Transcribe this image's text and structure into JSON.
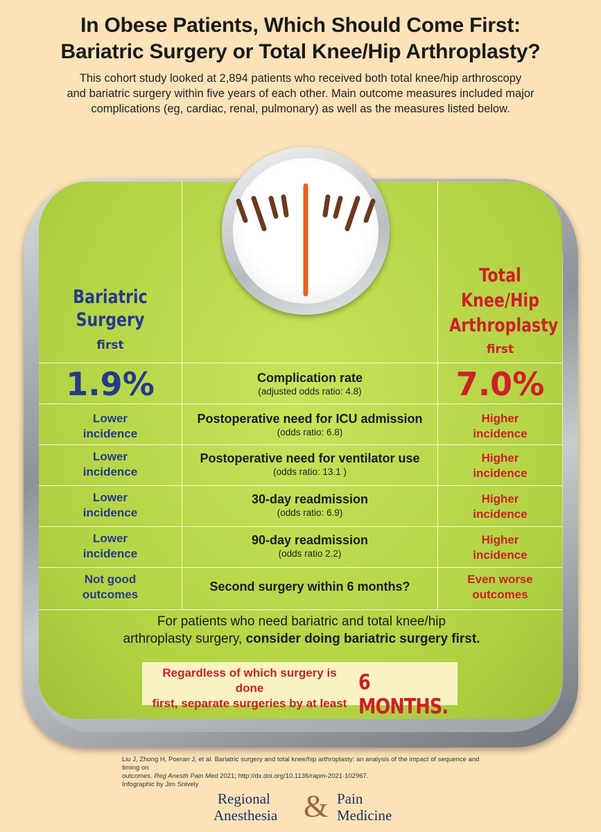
{
  "header": {
    "title_line1": "In Obese Patients, Which Should Come First:",
    "title_line2": "Bariatric Surgery or Total Knee/Hip Arthroplasty?",
    "intro_line1": "This cohort study looked at 2,894 patients who received both total knee/hip arthroscopy",
    "intro_line2": "and bariatric surgery within five years of each other. Main outcome measures included major",
    "intro_line3": "complications (eg, cardiac, renal, pulmonary) as well as the measures listed below."
  },
  "columns": {
    "left_line1": "Bariatric",
    "left_line2": "Surgery",
    "left_sub": "first",
    "right_line1": "Total",
    "right_line2": "Knee/Hip",
    "right_line3": "Arthroplasty",
    "right_sub": "first"
  },
  "complication": {
    "left_value": "1.9%",
    "label": "Complication rate",
    "sub": "(adjusted odds ratio: 4.8)",
    "right_value": "7.0%"
  },
  "rows": [
    {
      "left1": "Lower",
      "left2": "incidence",
      "label": "Postoperative need for ICU admission",
      "sub": "(odds ratio: 6.8)",
      "right1": "Higher",
      "right2": "incidence"
    },
    {
      "left1": "Lower",
      "left2": "incidence",
      "label": "Postoperative need for ventilator use",
      "sub": "(odds ratio: 13.1 )",
      "right1": "Higher",
      "right2": "incidence"
    },
    {
      "left1": "Lower",
      "left2": "incidence",
      "label": "30-day readmission",
      "sub": "(odds ratio: 6.9)",
      "right1": "Higher",
      "right2": "incidence"
    },
    {
      "left1": "Lower",
      "left2": "incidence",
      "label": "90-day readmission",
      "sub": "(odds ratio 2.2)",
      "right1": "Higher",
      "right2": "incidence"
    },
    {
      "left1": "Not good",
      "left2": "outcomes",
      "label": "Second surgery within 6 months?",
      "sub": "",
      "right1": "Even worse",
      "right2": "outcomes"
    }
  ],
  "conclusion": {
    "line1": "For patients who need bariatric and total knee/hip",
    "line2_plain": "arthroplasty surgery, ",
    "line2_bold": "consider doing bariatric surgery first."
  },
  "note": {
    "line1": "Regardless of which surgery is done",
    "line2": "first, separate surgeries by at least",
    "emphasis": "6 MONTHS."
  },
  "citation": {
    "line1": "Liu J, Zhong H, Poeran J, et al. Bariatric surgery and total knee/hip arthroplasty: an analysis of the impact of sequence and timing on",
    "line2_plain": "outcomes. ",
    "line2_journal": "Reg Anesth Pain Med",
    "line2_rest": " 2021; http://dx.doi.org/10.1136/rapm-2021-102967.",
    "line3": "Infographic by Jim Snively"
  },
  "journal": {
    "word1": "Regional",
    "word2": "Anesthesia",
    "amp": "&",
    "word3": "Pain",
    "word4": "Medicine"
  },
  "colors": {
    "background": "#fbe2b9",
    "panel_green": "#b4d54a",
    "blue": "#243a8c",
    "red": "#cc2027",
    "needle": "#e8611a",
    "tick": "#6b3a1f"
  }
}
